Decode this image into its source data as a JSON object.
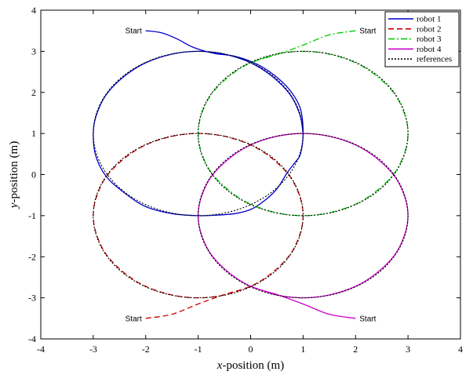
{
  "chart_data": {
    "type": "line",
    "xlabel": {
      "var": "x",
      "rest": "-position (m)"
    },
    "ylabel": {
      "var": "y",
      "rest": "-position (m)"
    },
    "xlim": [
      -4,
      4
    ],
    "ylim": [
      -4,
      4
    ],
    "xticks": [
      "-4",
      "-3",
      "-2",
      "-1",
      "0",
      "1",
      "2",
      "3",
      "4"
    ],
    "yticks": [
      "-4",
      "-3",
      "-2",
      "-1",
      "0",
      "1",
      "2",
      "3",
      "4"
    ],
    "grid": false,
    "legend_position": "top-right",
    "start_text": "Start",
    "series": [
      {
        "name": "robot 1",
        "color": "#0000cc",
        "dash": "solid",
        "start": [
          -2,
          3.5
        ],
        "points": [
          [
            -2.0,
            3.5
          ],
          [
            -1.7,
            3.45
          ],
          [
            -1.4,
            3.3
          ],
          [
            -1.1,
            3.1
          ],
          [
            -0.7,
            2.95
          ],
          [
            -0.3,
            2.88
          ],
          [
            0.1,
            2.7
          ],
          [
            0.45,
            2.42
          ],
          [
            0.75,
            2.05
          ],
          [
            0.95,
            1.6
          ],
          [
            1.0,
            1.0
          ],
          [
            0.95,
            0.5
          ],
          [
            0.85,
            0.3
          ],
          [
            0.7,
            0.05
          ],
          [
            0.5,
            -0.35
          ],
          [
            0.25,
            -0.65
          ],
          [
            0.0,
            -0.85
          ],
          [
            -0.3,
            -0.95
          ],
          [
            -0.7,
            -0.99
          ],
          [
            -1.0,
            -1.0
          ],
          [
            -1.5,
            -0.95
          ],
          [
            -2.0,
            -0.78
          ],
          [
            -2.4,
            -0.45
          ],
          [
            -2.75,
            -0.05
          ],
          [
            -2.95,
            0.45
          ],
          [
            -3.0,
            1.0
          ],
          [
            -2.94,
            1.45
          ],
          [
            -2.75,
            1.95
          ],
          [
            -2.4,
            2.4
          ],
          [
            -2.0,
            2.72
          ],
          [
            -1.5,
            2.93
          ],
          [
            -1.0,
            3.0
          ],
          [
            -0.5,
            2.93
          ],
          [
            0.0,
            2.72
          ],
          [
            0.4,
            2.4
          ],
          [
            0.75,
            1.95
          ],
          [
            0.94,
            1.45
          ],
          [
            1.0,
            1.0
          ]
        ]
      },
      {
        "name": "robot 2",
        "color": "#cc0000",
        "dash": "7,4",
        "start": [
          -2,
          -3.5
        ],
        "points": [
          [
            -2.0,
            -3.5
          ],
          [
            -1.5,
            -3.4
          ],
          [
            -1.0,
            -3.15
          ],
          [
            -0.5,
            -2.92
          ],
          [
            0.0,
            -2.72
          ],
          [
            0.4,
            -2.4
          ],
          [
            0.75,
            -1.95
          ],
          [
            0.94,
            -1.45
          ],
          [
            1.0,
            -1.0
          ],
          [
            0.94,
            -0.55
          ],
          [
            0.75,
            -0.05
          ],
          [
            0.4,
            0.4
          ],
          [
            0.0,
            0.72
          ],
          [
            -0.5,
            0.93
          ],
          [
            -1.0,
            1.0
          ],
          [
            -1.5,
            0.93
          ],
          [
            -2.0,
            0.72
          ],
          [
            -2.4,
            0.4
          ],
          [
            -2.75,
            -0.05
          ],
          [
            -2.94,
            -0.55
          ],
          [
            -3.0,
            -1.0
          ],
          [
            -2.94,
            -1.45
          ],
          [
            -2.75,
            -1.95
          ],
          [
            -2.4,
            -2.4
          ],
          [
            -2.0,
            -2.72
          ],
          [
            -1.5,
            -2.93
          ],
          [
            -1.0,
            -3.0
          ],
          [
            -0.5,
            -2.93
          ],
          [
            0.0,
            -2.72
          ]
        ]
      },
      {
        "name": "robot 3",
        "color": "#00cc00",
        "dash": "8,3,2,3",
        "start": [
          2,
          3.5
        ],
        "points": [
          [
            2.0,
            3.5
          ],
          [
            1.5,
            3.4
          ],
          [
            1.0,
            3.15
          ],
          [
            0.5,
            2.92
          ],
          [
            0.0,
            2.72
          ],
          [
            -0.4,
            2.4
          ],
          [
            -0.75,
            1.95
          ],
          [
            -0.94,
            1.45
          ],
          [
            -1.0,
            1.0
          ],
          [
            -0.94,
            0.55
          ],
          [
            -0.75,
            0.05
          ],
          [
            -0.4,
            -0.4
          ],
          [
            0.0,
            -0.72
          ],
          [
            0.5,
            -0.93
          ],
          [
            1.0,
            -1.0
          ],
          [
            1.5,
            -0.93
          ],
          [
            2.0,
            -0.72
          ],
          [
            2.4,
            -0.4
          ],
          [
            2.75,
            0.05
          ],
          [
            2.94,
            0.55
          ],
          [
            3.0,
            1.0
          ],
          [
            2.94,
            1.45
          ],
          [
            2.75,
            1.95
          ],
          [
            2.4,
            2.4
          ],
          [
            2.0,
            2.72
          ],
          [
            1.5,
            2.93
          ],
          [
            1.0,
            3.0
          ],
          [
            0.5,
            2.93
          ],
          [
            0.0,
            2.72
          ]
        ]
      },
      {
        "name": "robot 4",
        "color": "#cc00cc",
        "dash": "solid",
        "start": [
          2,
          -3.5
        ],
        "points": [
          [
            2.0,
            -3.5
          ],
          [
            1.5,
            -3.4
          ],
          [
            1.0,
            -3.15
          ],
          [
            0.5,
            -2.92
          ],
          [
            0.0,
            -2.72
          ],
          [
            -0.4,
            -2.4
          ],
          [
            -0.75,
            -1.95
          ],
          [
            -0.94,
            -1.45
          ],
          [
            -1.0,
            -1.0
          ],
          [
            -0.94,
            -0.55
          ],
          [
            -0.75,
            -0.05
          ],
          [
            -0.4,
            0.4
          ],
          [
            0.0,
            0.72
          ],
          [
            0.5,
            0.93
          ],
          [
            1.0,
            1.0
          ],
          [
            1.5,
            0.93
          ],
          [
            2.0,
            0.72
          ],
          [
            2.4,
            0.4
          ],
          [
            2.75,
            -0.05
          ],
          [
            2.94,
            -0.55
          ],
          [
            3.0,
            -1.0
          ],
          [
            2.94,
            -1.45
          ],
          [
            2.75,
            -1.95
          ],
          [
            2.4,
            -2.4
          ],
          [
            2.0,
            -2.72
          ],
          [
            1.5,
            -2.93
          ],
          [
            1.0,
            -3.0
          ],
          [
            0.5,
            -2.93
          ],
          [
            0.0,
            -2.72
          ]
        ]
      }
    ],
    "references": {
      "name": "references",
      "color": "#000000",
      "dash": "2,2",
      "circles": [
        {
          "cx": -1,
          "cy": 1,
          "r": 2
        },
        {
          "cx": -1,
          "cy": -1,
          "r": 2
        },
        {
          "cx": 1,
          "cy": 1,
          "r": 2
        },
        {
          "cx": 1,
          "cy": -1,
          "r": 2
        }
      ]
    }
  }
}
